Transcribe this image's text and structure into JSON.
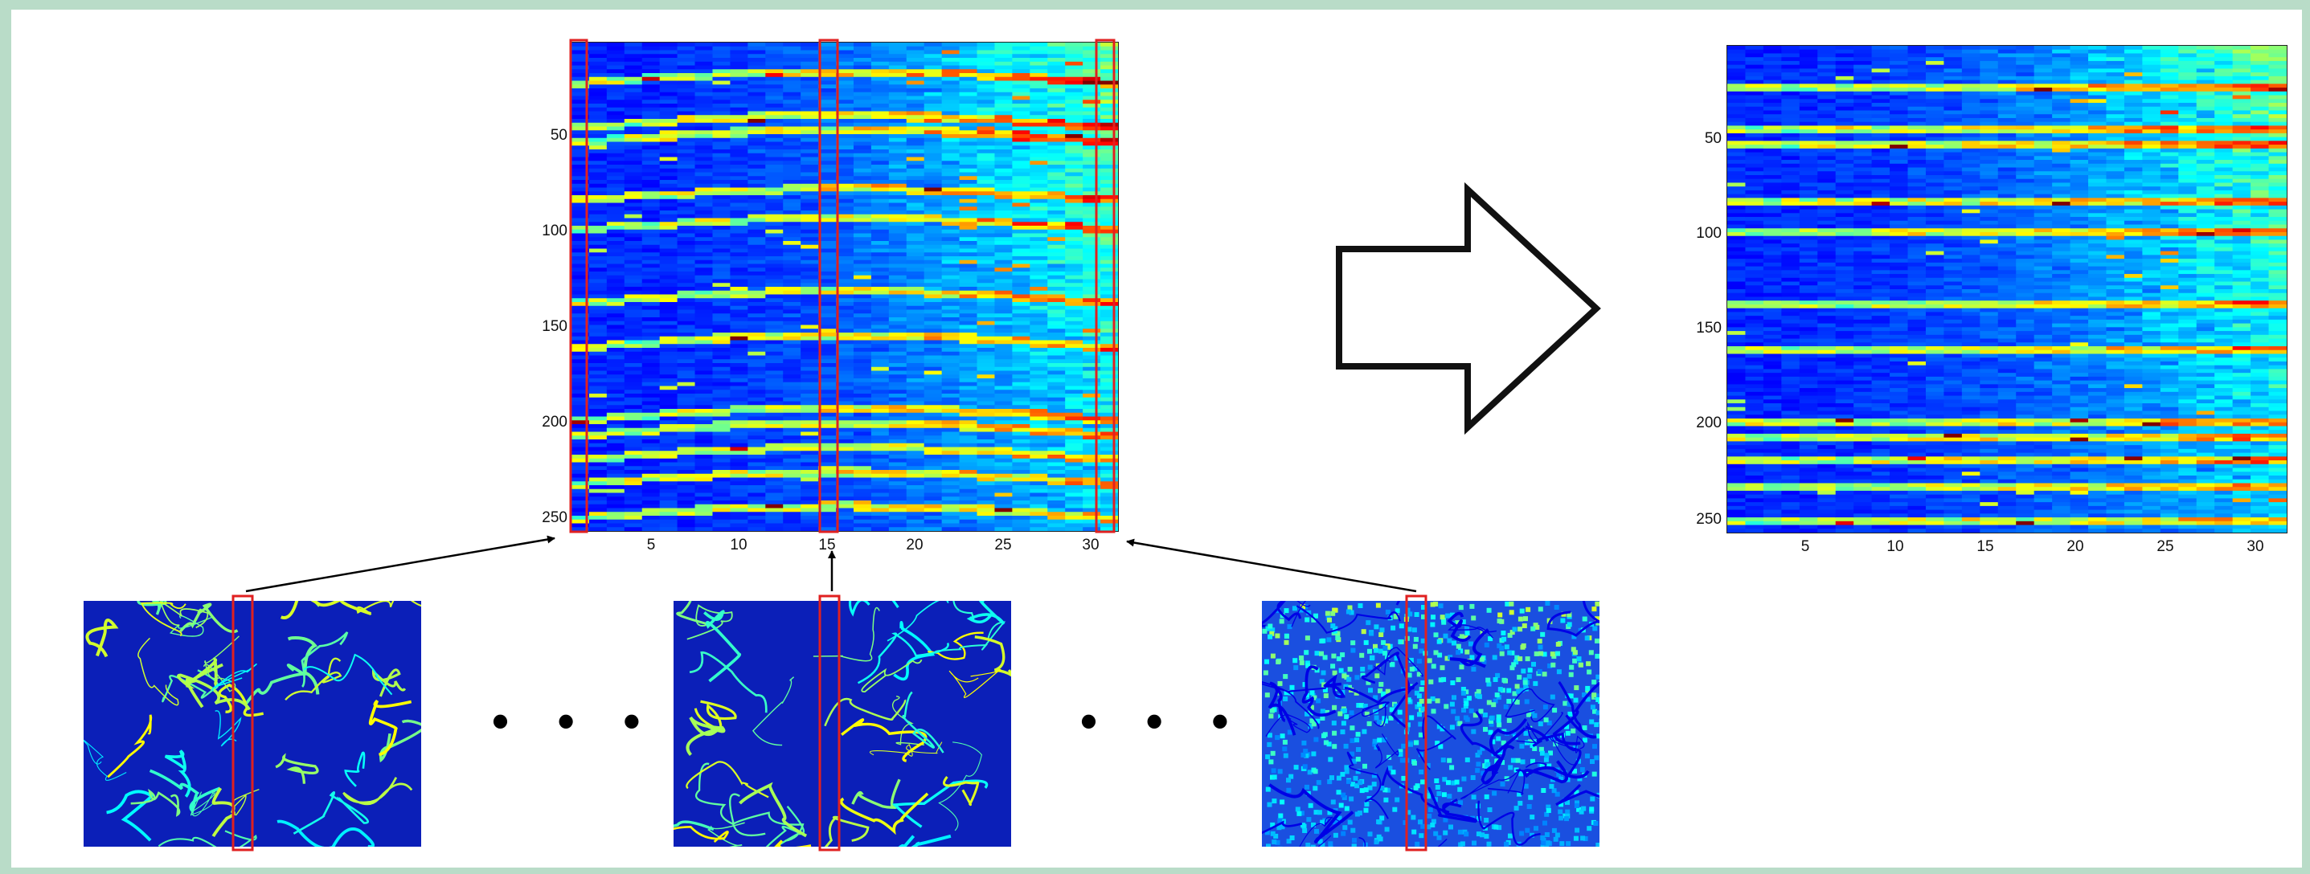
{
  "diagram": {
    "left_matrix": {
      "y_ticks": [
        "50",
        "100",
        "150",
        "200",
        "250"
      ],
      "x_ticks": [
        "5",
        "10",
        "15",
        "20",
        "25",
        "30"
      ],
      "highlighted_columns": [
        1,
        15,
        31
      ]
    },
    "right_matrix": {
      "y_ticks": [
        "50",
        "100",
        "150",
        "200",
        "250"
      ],
      "x_ticks": [
        "5",
        "10",
        "15",
        "20",
        "25",
        "30"
      ]
    },
    "separators": [
      "• • •",
      "• • •"
    ],
    "colors": {
      "background": "#b9dcc8",
      "highlight_box": "#e02020",
      "arrow": "#000000",
      "colormap": "jet"
    }
  }
}
